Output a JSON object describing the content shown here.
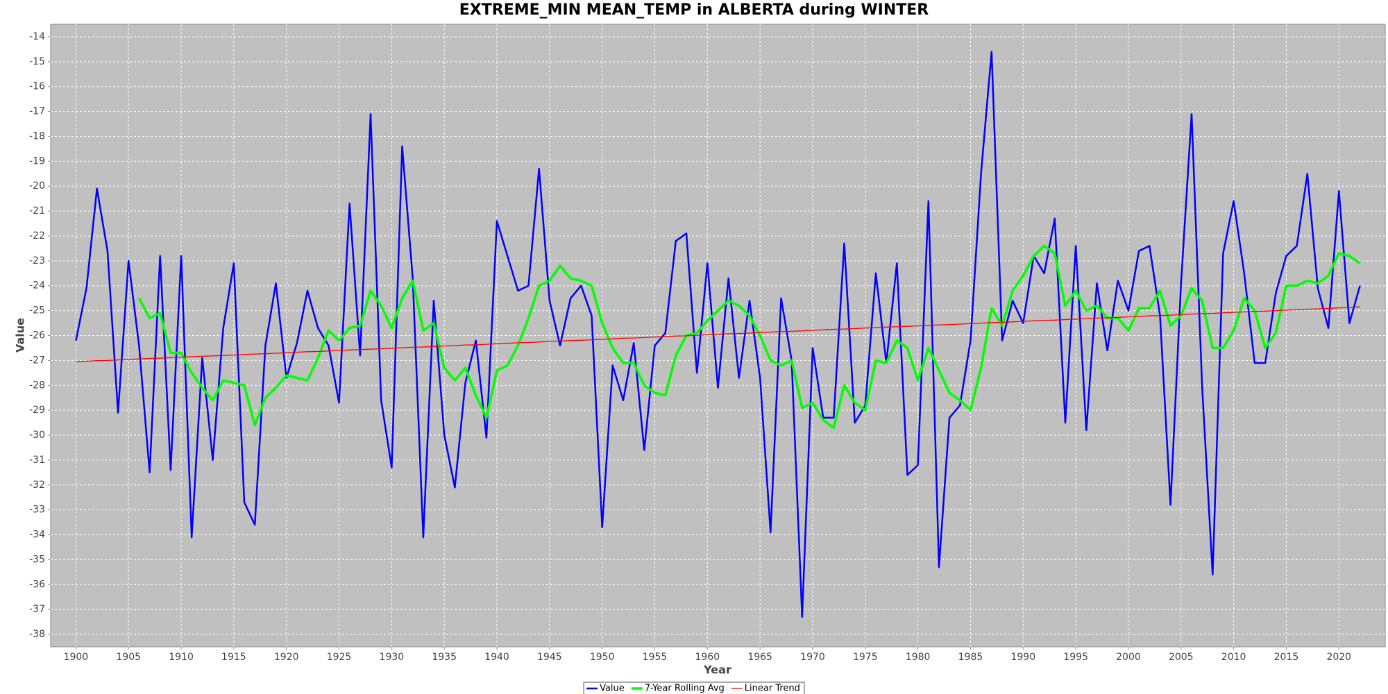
{
  "chart_data": {
    "type": "line",
    "title": "EXTREME_MIN MEAN_TEMP in ALBERTA during WINTER",
    "x_label": "Year",
    "y_label": "Value",
    "x": [
      1900,
      1901,
      1902,
      1903,
      1904,
      1905,
      1906,
      1907,
      1908,
      1909,
      1910,
      1911,
      1912,
      1913,
      1914,
      1915,
      1916,
      1917,
      1918,
      1919,
      1920,
      1921,
      1922,
      1923,
      1924,
      1925,
      1926,
      1927,
      1928,
      1929,
      1930,
      1931,
      1932,
      1933,
      1934,
      1935,
      1936,
      1937,
      1938,
      1939,
      1940,
      1941,
      1942,
      1943,
      1944,
      1945,
      1946,
      1947,
      1948,
      1949,
      1950,
      1951,
      1952,
      1953,
      1954,
      1955,
      1956,
      1957,
      1958,
      1959,
      1960,
      1961,
      1962,
      1963,
      1964,
      1965,
      1966,
      1967,
      1968,
      1969,
      1970,
      1971,
      1972,
      1973,
      1974,
      1975,
      1976,
      1977,
      1978,
      1979,
      1980,
      1981,
      1982,
      1983,
      1984,
      1985,
      1986,
      1987,
      1988,
      1989,
      1990,
      1991,
      1992,
      1993,
      1994,
      1995,
      1996,
      1997,
      1998,
      1999,
      2000,
      2001,
      2002,
      2003,
      2004,
      2005,
      2006,
      2007,
      2008,
      2009,
      2010,
      2011,
      2012,
      2013,
      2014,
      2015,
      2016,
      2017,
      2018,
      2019,
      2020,
      2021,
      2022
    ],
    "series": [
      {
        "name": "Value",
        "color": "#0000ff",
        "values": [
          -26.2,
          -24.1,
          -20.1,
          -22.6,
          -29.1,
          -23.0,
          -26.4,
          -31.5,
          -22.8,
          -31.4,
          -22.8,
          -34.1,
          -26.9,
          -31.0,
          -25.7,
          -23.1,
          -32.7,
          -33.6,
          -26.4,
          -23.9,
          -27.7,
          -26.3,
          -24.2,
          -25.7,
          -26.4,
          -28.7,
          -20.7,
          -26.8,
          -17.1,
          -28.6,
          -31.3,
          -18.4,
          -23.7,
          -34.1,
          -24.6,
          -30.0,
          -32.1,
          -27.9,
          -26.2,
          -30.1,
          -21.4,
          -22.8,
          -24.2,
          -24.0,
          -19.3,
          -24.6,
          -26.4,
          -24.5,
          -24.0,
          -25.2,
          -33.7,
          -27.2,
          -28.6,
          -26.3,
          -30.6,
          -26.4,
          -25.9,
          -22.2,
          -21.9,
          -27.5,
          -23.1,
          -28.1,
          -23.7,
          -27.7,
          -24.6,
          -27.7,
          -33.9,
          -24.5,
          -27.0,
          -37.3,
          -26.5,
          -29.3,
          -29.3,
          -22.3,
          -29.5,
          -28.8,
          -23.5,
          -27.1,
          -23.1,
          -31.6,
          -31.2,
          -20.6,
          -35.3,
          -29.3,
          -28.8,
          -26.2,
          -19.5,
          -14.6,
          -26.2,
          -24.6,
          -25.5,
          -22.8,
          -23.5,
          -21.3,
          -29.5,
          -22.4,
          -29.8,
          -23.9,
          -26.6,
          -23.8,
          -25.0,
          -22.6,
          -22.4,
          -25.2,
          -32.8,
          -23.9,
          -17.1,
          -28.0,
          -35.6,
          -22.7,
          -20.6,
          -23.5,
          -27.1,
          -27.1,
          -24.3,
          -22.8,
          -22.4,
          -19.5,
          -24.1,
          -25.7,
          -20.2,
          -25.5,
          -24.0
        ]
      },
      {
        "name": "7-Year Rolling Avg",
        "color": "#00ff00",
        "values": [
          null,
          null,
          null,
          null,
          null,
          null,
          -24.5,
          -25.3,
          -25.1,
          -26.7,
          -26.7,
          -27.5,
          -28.1,
          -28.6,
          -27.8,
          -27.9,
          -28.0,
          -29.6,
          -28.5,
          -28.1,
          -27.6,
          -27.7,
          -27.8,
          -26.9,
          -25.8,
          -26.2,
          -25.7,
          -25.6,
          -24.2,
          -24.8,
          -25.7,
          -24.5,
          -23.8,
          -25.8,
          -25.5,
          -27.3,
          -27.8,
          -27.3,
          -28.4,
          -29.3,
          -27.4,
          -27.2,
          -26.4,
          -25.3,
          -24.0,
          -23.8,
          -23.2,
          -23.7,
          -23.8,
          -24.0,
          -25.5,
          -26.5,
          -27.1,
          -27.1,
          -28.0,
          -28.3,
          -28.4,
          -26.8,
          -26.0,
          -25.9,
          -25.4,
          -25.0,
          -24.6,
          -24.8,
          -25.2,
          -26.0,
          -27.0,
          -27.2,
          -27.0,
          -28.9,
          -28.7,
          -29.4,
          -29.7,
          -28.0,
          -28.7,
          -29.0,
          -27.0,
          -27.1,
          -26.2,
          -26.5,
          -27.8,
          -26.5,
          -27.4,
          -28.3,
          -28.6,
          -29.0,
          -27.3,
          -24.9,
          -25.6,
          -24.2,
          -23.6,
          -22.8,
          -22.4,
          -22.7,
          -24.8,
          -24.2,
          -25.0,
          -24.8,
          -25.3,
          -25.3,
          -25.8,
          -24.9,
          -24.9,
          -24.2,
          -25.6,
          -25.2,
          -24.1,
          -24.6,
          -26.5,
          -26.5,
          -25.8,
          -24.5,
          -25.0,
          -26.5,
          -25.9,
          -24.0,
          -24.0,
          -23.8,
          -23.9,
          -23.6,
          -22.7,
          -22.8,
          -23.1
        ]
      },
      {
        "name": "Linear Trend",
        "color": "#ff0000",
        "values": [
          -27.05,
          -27.03,
          -27.01,
          -27.0,
          -26.98,
          -26.96,
          -26.94,
          -26.92,
          -26.91,
          -26.89,
          -26.87,
          -26.85,
          -26.83,
          -26.82,
          -26.8,
          -26.78,
          -26.76,
          -26.74,
          -26.73,
          -26.71,
          -26.69,
          -26.67,
          -26.65,
          -26.64,
          -26.62,
          -26.6,
          -26.58,
          -26.56,
          -26.55,
          -26.53,
          -26.51,
          -26.49,
          -26.47,
          -26.46,
          -26.44,
          -26.42,
          -26.4,
          -26.38,
          -26.37,
          -26.35,
          -26.33,
          -26.31,
          -26.29,
          -26.28,
          -26.26,
          -26.24,
          -26.22,
          -26.2,
          -26.19,
          -26.17,
          -26.15,
          -26.13,
          -26.11,
          -26.1,
          -26.08,
          -26.06,
          -26.04,
          -26.02,
          -26.01,
          -25.99,
          -25.97,
          -25.95,
          -25.93,
          -25.92,
          -25.9,
          -25.88,
          -25.86,
          -25.84,
          -25.83,
          -25.81,
          -25.79,
          -25.77,
          -25.75,
          -25.74,
          -25.72,
          -25.7,
          -25.68,
          -25.66,
          -25.65,
          -25.63,
          -25.61,
          -25.59,
          -25.57,
          -25.56,
          -25.54,
          -25.52,
          -25.5,
          -25.48,
          -25.47,
          -25.45,
          -25.43,
          -25.41,
          -25.39,
          -25.38,
          -25.36,
          -25.34,
          -25.32,
          -25.3,
          -25.29,
          -25.27,
          -25.25,
          -25.23,
          -25.21,
          -25.2,
          -25.18,
          -25.16,
          -25.14,
          -25.12,
          -25.11,
          -25.09,
          -25.07,
          -25.05,
          -25.03,
          -25.02,
          -25.0,
          -24.98,
          -24.96,
          -24.94,
          -24.93,
          -24.91,
          -24.89,
          -24.87,
          -24.85
        ]
      }
    ],
    "xlim": [
      1897.6,
      2024.4
    ],
    "xticks": [
      1900,
      1905,
      1910,
      1915,
      1920,
      1925,
      1930,
      1935,
      1940,
      1945,
      1950,
      1955,
      1960,
      1965,
      1970,
      1975,
      1980,
      1985,
      1990,
      1995,
      2000,
      2005,
      2010,
      2015,
      2020
    ],
    "ylim": [
      -38.5,
      -13.5
    ],
    "yticks": [
      -38,
      -37,
      -36,
      -35,
      -34,
      -33,
      -32,
      -31,
      -30,
      -29,
      -28,
      -27,
      -26,
      -25,
      -24,
      -23,
      -22,
      -21,
      -20,
      -19,
      -18,
      -17,
      -16,
      -15,
      -14
    ],
    "grid": true,
    "legend": "bottom"
  }
}
